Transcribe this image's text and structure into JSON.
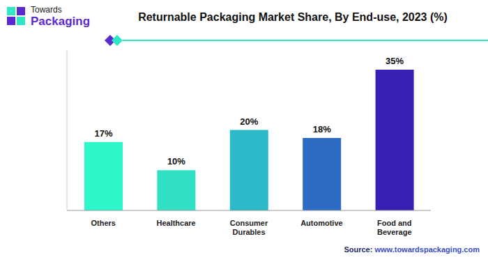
{
  "chart_data": {
    "type": "bar",
    "title": "Returnable Packaging Market Share, By End-use, 2023 (%)",
    "logo": [
      "Towards",
      "Packaging"
    ],
    "source": "Source: www.towardspackaging.com",
    "categories": [
      "Others",
      "Healthcare",
      "Consumer Durables",
      "Automotive",
      "Food and Beverage"
    ],
    "values": [
      17,
      10,
      20,
      18,
      35
    ],
    "value_labels": [
      "17%",
      "10%",
      "20%",
      "18%",
      "35%"
    ],
    "colors": [
      "#2ef7cb",
      "#31e0c4",
      "#2cb9c8",
      "#2e6bc4",
      "#3a1fb5"
    ],
    "ylim": [
      0,
      40
    ],
    "tick_labels": "x",
    "grid": false,
    "data_labels": true
  }
}
